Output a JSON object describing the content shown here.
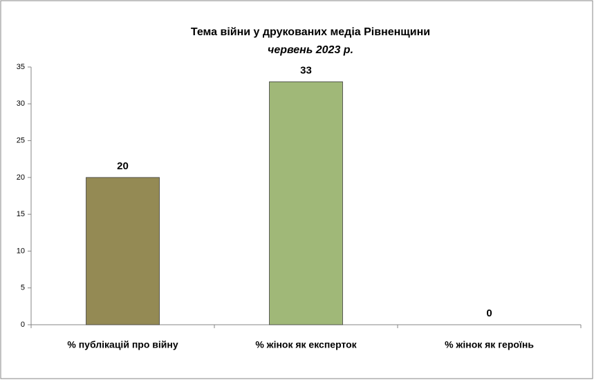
{
  "chart_data": {
    "type": "bar",
    "title": "Тема війни у друкованих медіа Рівненщини",
    "subtitle": "червень 2023 р.",
    "categories": [
      "% публікацій про війну",
      "% жінок як експерток",
      "% жінок як героїнь"
    ],
    "values": [
      20,
      33,
      0
    ],
    "colors": [
      "#948a54",
      "#a0b878",
      "#4f81bd"
    ],
    "ylim": [
      0,
      35
    ],
    "yticks": [
      0,
      5,
      10,
      15,
      20,
      25,
      30,
      35
    ],
    "grid": false
  }
}
